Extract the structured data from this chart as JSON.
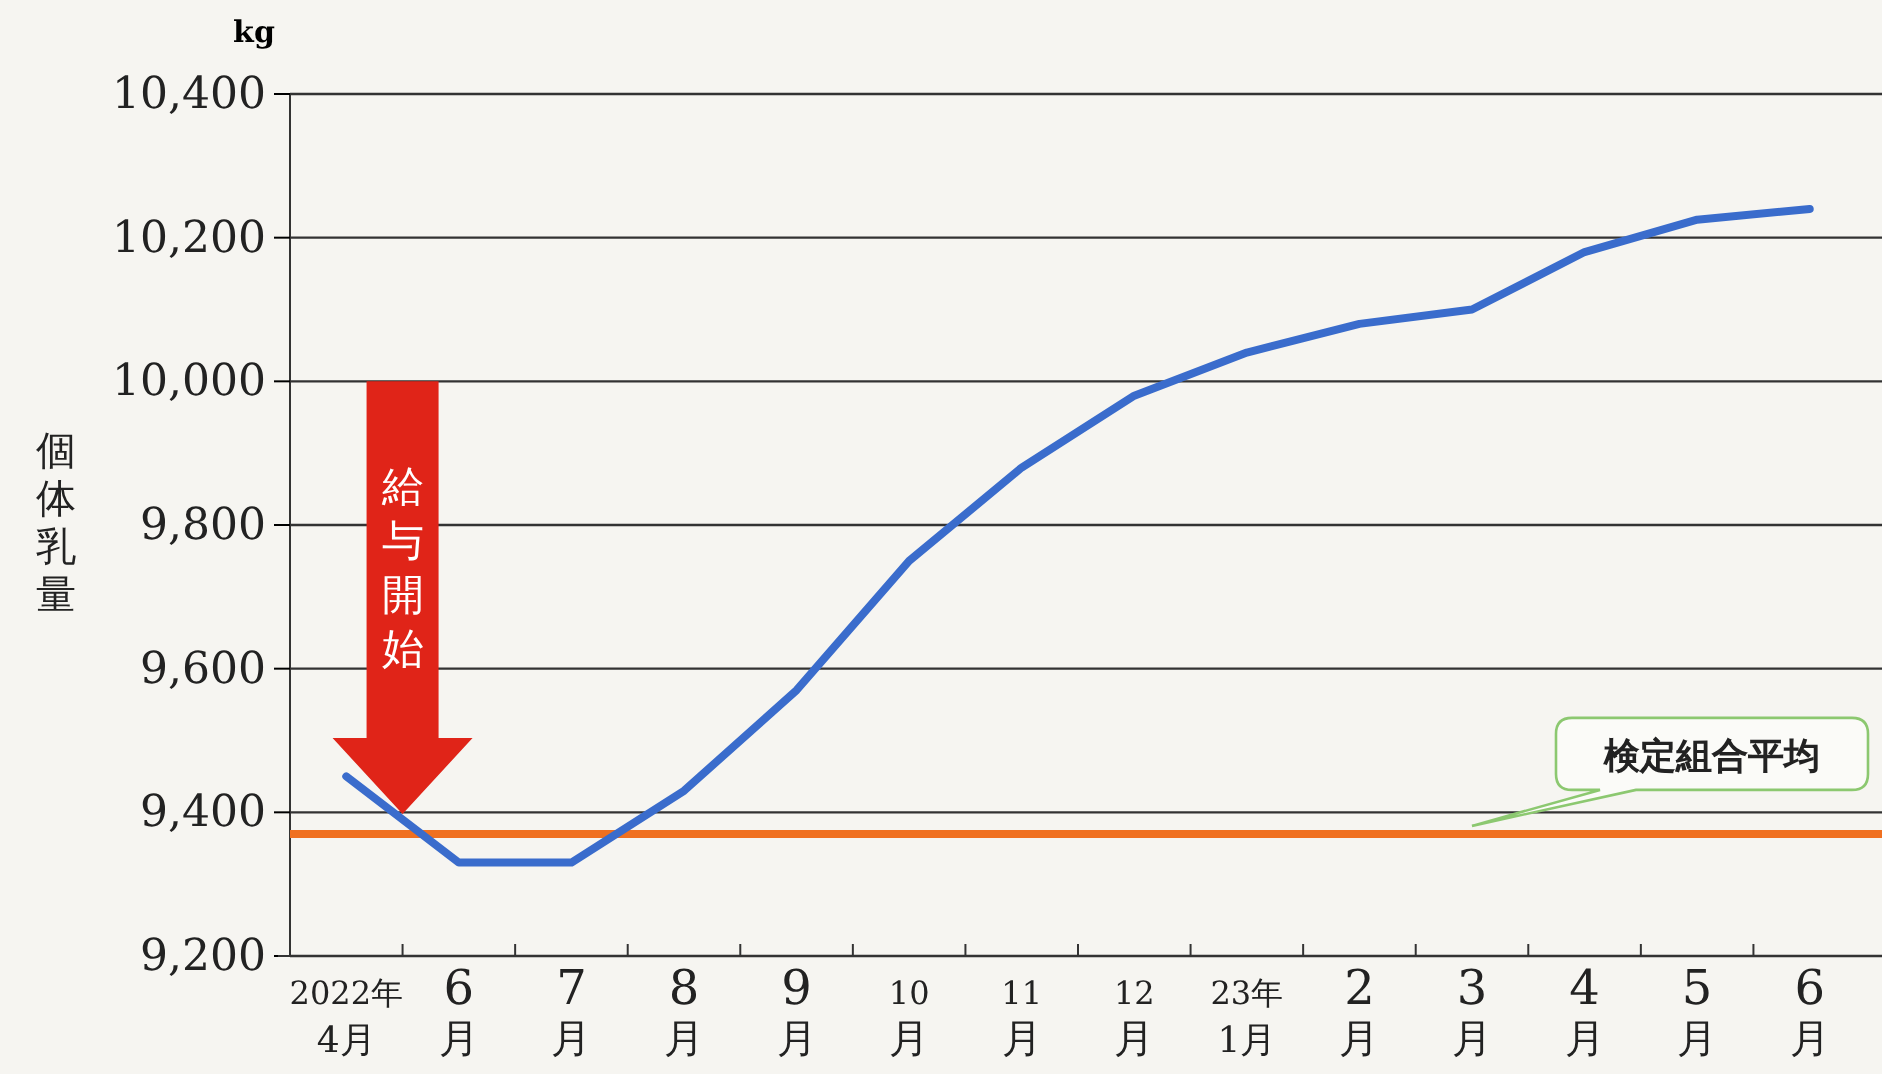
{
  "chart_data": {
    "type": "line",
    "ylabel": "個体乳量",
    "categories": [
      "2022年4月",
      "6月",
      "7月",
      "8月",
      "9月",
      "10月",
      "11月",
      "12月",
      "23年1月",
      "2月",
      "3月",
      "4月",
      "5月",
      "6月"
    ],
    "series": [
      {
        "color": "#3a6ccc",
        "values": [
          9450,
          9330,
          9330,
          9430,
          9570,
          9750,
          9880,
          9980,
          10040,
          10080,
          10100,
          10180,
          10225,
          10240
        ]
      }
    ],
    "ylim": [
      9200,
      10400
    ],
    "yticks": [
      {
        "value": 9200,
        "label": "9,200"
      },
      {
        "value": 9400,
        "label": "9,400"
      },
      {
        "value": 9600,
        "label": "9,600"
      },
      {
        "value": 9800,
        "label": "9,800"
      },
      {
        "value": 10000,
        "label": "10,000"
      },
      {
        "value": 10200,
        "label": "10,200"
      },
      {
        "value": 10400,
        "label": "10,400"
      }
    ],
    "grid": "y",
    "marker": "none",
    "line_style": "solid",
    "ref_lines": [
      {
        "axis": "y",
        "value": 9370,
        "label": "検定組合平均",
        "color": "#f07020"
      }
    ],
    "annotations": [
      "kg",
      "給与開始"
    ]
  }
}
